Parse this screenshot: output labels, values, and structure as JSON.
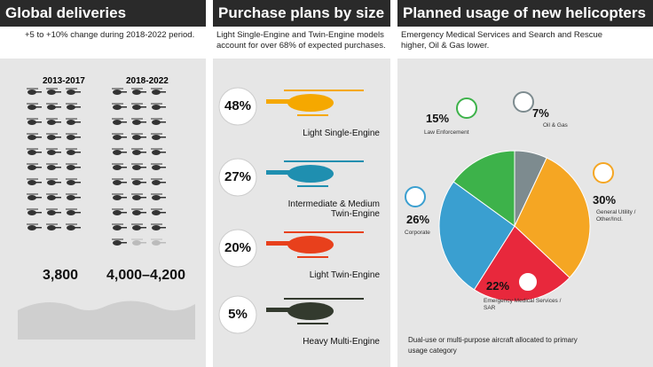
{
  "deliveries": {
    "title": "Global deliveries",
    "subtitle": "+5 to +10% change during 2018-2022 period.",
    "periods": [
      {
        "label": "2013-2017",
        "total": "3,800"
      },
      {
        "label": "2018-2022",
        "total": "4,000–4,200"
      }
    ]
  },
  "purchase": {
    "title": "Purchase plans by size",
    "subtitle": "Light Single-Engine and Twin-Engine models account for over 68% of expected purchases.",
    "items": [
      {
        "percent": "48%",
        "label": "Light Single-Engine",
        "color": "#f5a800"
      },
      {
        "percent": "27%",
        "label": "Intermediate & Medium Twin-Engine",
        "color": "#1f8fb0"
      },
      {
        "percent": "20%",
        "label": "Light Twin-Engine",
        "color": "#e8401c"
      },
      {
        "percent": "5%",
        "label": "Heavy Multi-Engine",
        "color": "#333a2e"
      }
    ]
  },
  "chart_data": {
    "type": "pie",
    "title": "Planned usage of new helicopters",
    "subtitle": "Emergency Medical Services and Search and Rescue higher, Oil & Gas lower.",
    "categories": [
      "Oil & Gas",
      "General Utility / Other/Incl.",
      "Emergency Medical Services / SAR",
      "Corporate",
      "Law Enforcement"
    ],
    "values": [
      7,
      30,
      22,
      26,
      15
    ],
    "value_labels": [
      "7%",
      "30%",
      "22%",
      "26%",
      "15%"
    ],
    "colors": [
      "#7d8b8f",
      "#f5a623",
      "#e8283c",
      "#3a9fd0",
      "#3db24a"
    ],
    "note": "Dual-use or multi-purpose aircraft allocated to primary usage category"
  }
}
